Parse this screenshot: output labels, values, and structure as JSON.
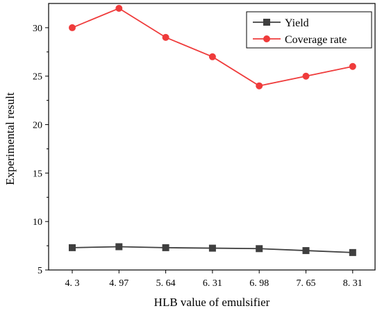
{
  "chart_data": {
    "type": "line",
    "title": "",
    "xlabel": "HLB value of emulsifier",
    "ylabel": "Experimental result",
    "categories": [
      "4. 3",
      "4. 97",
      "5. 64",
      "6. 31",
      "6. 98",
      "7. 65",
      "8. 31"
    ],
    "ylim": [
      5,
      32.5
    ],
    "yticks": [
      5,
      10,
      15,
      20,
      25,
      30
    ],
    "grid": false,
    "legend_position": "top-right",
    "series": [
      {
        "name": "Yield",
        "marker": "square",
        "color": "#3f3f3f",
        "values": [
          7.3,
          7.4,
          7.3,
          7.25,
          7.2,
          7.0,
          6.8
        ]
      },
      {
        "name": "Coverage rate",
        "marker": "circle",
        "color": "#ef3b3b",
        "values": [
          30,
          32,
          29,
          27,
          24,
          25,
          26
        ]
      }
    ]
  }
}
